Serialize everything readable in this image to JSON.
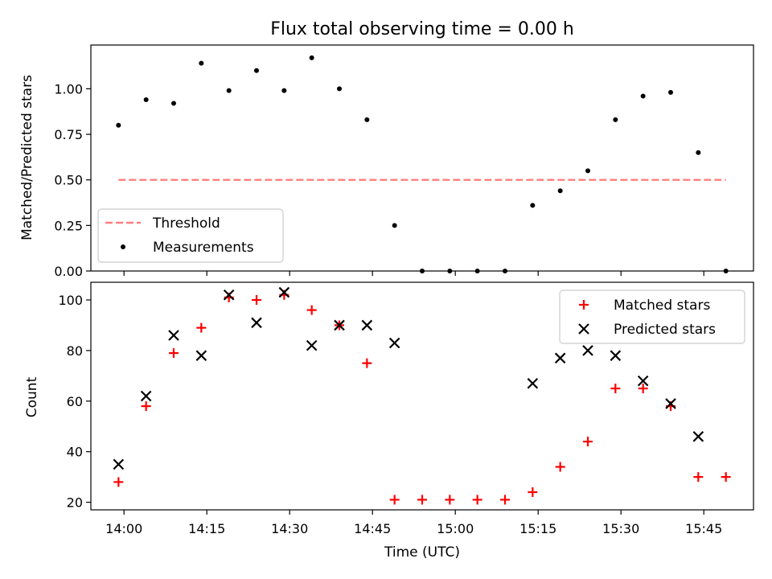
{
  "chart_data": [
    {
      "type": "scatter",
      "title": "Flux total observing time = 0.00 h",
      "ylabel": "Matched/Predicted stars",
      "ylim": [
        0,
        1.24
      ],
      "yticks": [
        "0.00",
        "0.25",
        "0.50",
        "0.75",
        "1.00"
      ],
      "threshold": {
        "name": "Threshold",
        "value": 0.5,
        "x_start": "13:59",
        "x_end": "15:49",
        "color": "#ff7f7f"
      },
      "series": [
        {
          "name": "Measurements",
          "color": "#000000",
          "x": [
            "13:59",
            "14:04",
            "14:09",
            "14:14",
            "14:19",
            "14:24",
            "14:29",
            "14:34",
            "14:39",
            "14:44",
            "14:49",
            "14:54",
            "14:59",
            "15:04",
            "15:09",
            "15:14",
            "15:19",
            "15:24",
            "15:29",
            "15:34",
            "15:39",
            "15:44",
            "15:49"
          ],
          "y": [
            0.8,
            0.94,
            0.92,
            1.14,
            0.99,
            1.1,
            0.99,
            1.17,
            1.0,
            0.83,
            0.25,
            0.0,
            0.0,
            0.0,
            0.0,
            0.36,
            0.44,
            0.55,
            0.83,
            0.96,
            0.98,
            0.65,
            0.0
          ]
        }
      ],
      "legend": "lower-left"
    },
    {
      "type": "scatter",
      "xlabel": "Time (UTC)",
      "ylabel": "Count",
      "ylim": [
        17,
        107
      ],
      "yticks": [
        "20",
        "40",
        "60",
        "80",
        "100"
      ],
      "xticks": [
        "14:00",
        "14:15",
        "14:30",
        "14:45",
        "15:00",
        "15:15",
        "15:30",
        "15:45"
      ],
      "series": [
        {
          "name": "Matched stars",
          "marker": "plus",
          "color": "#ff0000",
          "x": [
            "13:59",
            "14:04",
            "14:09",
            "14:14",
            "14:19",
            "14:24",
            "14:29",
            "14:34",
            "14:39",
            "14:44",
            "14:49",
            "14:54",
            "14:59",
            "15:04",
            "15:09",
            "15:14",
            "15:19",
            "15:24",
            "15:29",
            "15:34",
            "15:39",
            "15:44",
            "15:49"
          ],
          "y": [
            28,
            58,
            79,
            89,
            101,
            100,
            102,
            96,
            90,
            75,
            21,
            21,
            21,
            21,
            21,
            24,
            34,
            44,
            65,
            65,
            58,
            30,
            30
          ]
        },
        {
          "name": "Predicted stars",
          "marker": "cross",
          "color": "#000000",
          "x": [
            "13:59",
            "14:04",
            "14:09",
            "14:14",
            "14:19",
            "14:24",
            "14:29",
            "14:34",
            "14:39",
            "14:44",
            "14:49",
            "15:14",
            "15:19",
            "15:24",
            "15:29",
            "15:34",
            "15:39",
            "15:44"
          ],
          "y": [
            35,
            62,
            86,
            78,
            102,
            91,
            103,
            82,
            90,
            90,
            83,
            67,
            77,
            80,
            78,
            68,
            59,
            46
          ]
        }
      ],
      "legend": "top-right"
    }
  ]
}
